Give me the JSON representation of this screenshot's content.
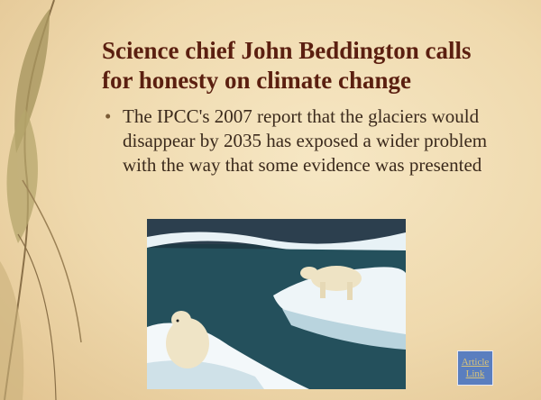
{
  "slide": {
    "title": "Science chief John Beddington calls for honesty on climate change",
    "bullets": [
      "The IPCC's 2007 report that the glaciers would disappear by 2035 has exposed a wider problem with the way that some evidence was presented"
    ],
    "link": "Article Link"
  }
}
